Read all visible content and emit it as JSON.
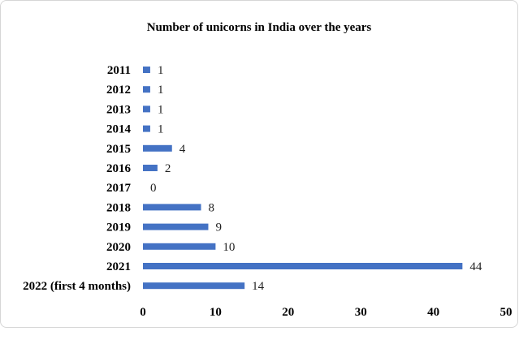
{
  "chart_data": {
    "type": "bar",
    "orientation": "horizontal",
    "title": "Number of unicorns in India over the years",
    "xlabel": "",
    "ylabel": "",
    "categories": [
      "2011",
      "2012",
      "2013",
      "2014",
      "2015",
      "2016",
      "2017",
      "2018",
      "2019",
      "2020",
      "2021",
      "2022 (first 4 months)"
    ],
    "values": [
      1,
      1,
      1,
      1,
      4,
      2,
      0,
      8,
      9,
      10,
      44,
      14
    ],
    "xlim": [
      0,
      50
    ],
    "xticks": [
      0,
      10,
      20,
      30,
      40,
      50
    ],
    "grid": false,
    "legend": "none",
    "bar_color": "#4472C4"
  }
}
